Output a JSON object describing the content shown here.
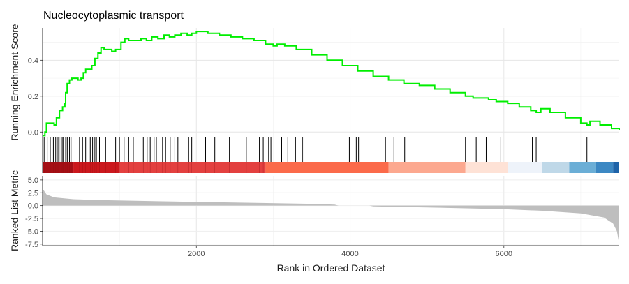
{
  "chart_data": {
    "type": "line",
    "title": "Nucleocytoplasmic transport",
    "xlabel": "Rank in Ordered Dataset",
    "xlim": [
      0,
      7500
    ],
    "x_ticks": [
      2000,
      4000,
      6000
    ],
    "es_panel": {
      "ylabel": "Running Enrichment Score",
      "ylim": [
        -0.03,
        0.58
      ],
      "y_ticks": [
        0.0,
        0.2,
        0.4
      ],
      "y_tick_labels": [
        "0.0",
        "0.2",
        "0.4"
      ],
      "series": [
        {
          "color": "#00EE00",
          "points": [
            [
              0,
              -0.02
            ],
            [
              30,
              0.0
            ],
            [
              50,
              0.05
            ],
            [
              100,
              0.05
            ],
            [
              150,
              0.04
            ],
            [
              180,
              0.08
            ],
            [
              220,
              0.12
            ],
            [
              260,
              0.14
            ],
            [
              290,
              0.16
            ],
            [
              300,
              0.22
            ],
            [
              320,
              0.27
            ],
            [
              350,
              0.29
            ],
            [
              380,
              0.3
            ],
            [
              420,
              0.3
            ],
            [
              460,
              0.29
            ],
            [
              500,
              0.3
            ],
            [
              530,
              0.33
            ],
            [
              560,
              0.35
            ],
            [
              600,
              0.35
            ],
            [
              640,
              0.37
            ],
            [
              680,
              0.41
            ],
            [
              720,
              0.44
            ],
            [
              760,
              0.47
            ],
            [
              800,
              0.46
            ],
            [
              850,
              0.46
            ],
            [
              900,
              0.45
            ],
            [
              950,
              0.46
            ],
            [
              990,
              0.46
            ],
            [
              1020,
              0.5
            ],
            [
              1070,
              0.52
            ],
            [
              1120,
              0.51
            ],
            [
              1200,
              0.51
            ],
            [
              1280,
              0.52
            ],
            [
              1350,
              0.51
            ],
            [
              1420,
              0.53
            ],
            [
              1500,
              0.52
            ],
            [
              1580,
              0.54
            ],
            [
              1650,
              0.53
            ],
            [
              1720,
              0.54
            ],
            [
              1800,
              0.55
            ],
            [
              1880,
              0.54
            ],
            [
              1940,
              0.55
            ],
            [
              2000,
              0.56
            ],
            [
              2050,
              0.56
            ],
            [
              2150,
              0.55
            ],
            [
              2300,
              0.54
            ],
            [
              2450,
              0.53
            ],
            [
              2600,
              0.52
            ],
            [
              2750,
              0.51
            ],
            [
              2900,
              0.49
            ],
            [
              3000,
              0.48
            ],
            [
              3050,
              0.49
            ],
            [
              3150,
              0.48
            ],
            [
              3300,
              0.46
            ],
            [
              3500,
              0.43
            ],
            [
              3700,
              0.4
            ],
            [
              3900,
              0.37
            ],
            [
              4100,
              0.34
            ],
            [
              4300,
              0.31
            ],
            [
              4500,
              0.29
            ],
            [
              4700,
              0.27
            ],
            [
              4900,
              0.26
            ],
            [
              5100,
              0.24
            ],
            [
              5300,
              0.22
            ],
            [
              5500,
              0.2
            ],
            [
              5600,
              0.19
            ],
            [
              5700,
              0.19
            ],
            [
              5800,
              0.18
            ],
            [
              5900,
              0.17
            ],
            [
              6050,
              0.16
            ],
            [
              6200,
              0.14
            ],
            [
              6350,
              0.12
            ],
            [
              6420,
              0.11
            ],
            [
              6480,
              0.13
            ],
            [
              6600,
              0.11
            ],
            [
              6800,
              0.08
            ],
            [
              7000,
              0.05
            ],
            [
              7080,
              0.04
            ],
            [
              7120,
              0.06
            ],
            [
              7250,
              0.04
            ],
            [
              7400,
              0.02
            ],
            [
              7500,
              0.01
            ]
          ]
        }
      ]
    },
    "hits": [
      20,
      60,
      100,
      140,
      170,
      200,
      215,
      240,
      255,
      270,
      300,
      320,
      330,
      350,
      370,
      480,
      520,
      560,
      620,
      650,
      680,
      700,
      740,
      820,
      950,
      1000,
      1060,
      1120,
      1180,
      1310,
      1360,
      1400,
      1450,
      1480,
      1560,
      1600,
      1660,
      1720,
      1760,
      1900,
      1940,
      2120,
      2240,
      2430,
      2650,
      2820,
      2870,
      2940,
      2970,
      3110,
      3190,
      3290,
      3380,
      3400,
      3990,
      4080,
      4110,
      4460,
      4570,
      4710,
      5500,
      5640,
      5770,
      5960,
      6370,
      6420,
      7080
    ],
    "color_bar": [
      {
        "from": 0,
        "to": 400,
        "color": "#A50F15"
      },
      {
        "from": 400,
        "to": 1000,
        "color": "#CB181D"
      },
      {
        "from": 1000,
        "to": 2900,
        "color": "#E3403F"
      },
      {
        "from": 2900,
        "to": 4500,
        "color": "#FB6A4A"
      },
      {
        "from": 4500,
        "to": 5500,
        "color": "#FCA88F"
      },
      {
        "from": 5500,
        "to": 6050,
        "color": "#FEE2D6"
      },
      {
        "from": 6050,
        "to": 6500,
        "color": "#EEF3FA"
      },
      {
        "from": 6500,
        "to": 6850,
        "color": "#BFD8E8"
      },
      {
        "from": 6850,
        "to": 7200,
        "color": "#6BAED6"
      },
      {
        "from": 7200,
        "to": 7420,
        "color": "#3C88C3"
      },
      {
        "from": 7420,
        "to": 7500,
        "color": "#1E63A8"
      }
    ],
    "metric_panel": {
      "ylabel": "Ranked List Metric",
      "ylim": [
        -7.8,
        5.8
      ],
      "y_ticks": [
        5.0,
        2.5,
        0.0,
        -2.5,
        -5.0,
        -7.5
      ],
      "y_tick_labels": [
        "5.0",
        "2.5",
        "0.0",
        "-2.5",
        "-5.0",
        "-7.5"
      ],
      "fill_color": "#BEBEBE",
      "profile": [
        [
          0,
          3.3
        ],
        [
          50,
          2.2
        ],
        [
          150,
          1.6
        ],
        [
          400,
          1.25
        ],
        [
          800,
          1.05
        ],
        [
          1500,
          0.85
        ],
        [
          2500,
          0.6
        ],
        [
          3500,
          0.35
        ],
        [
          3800,
          0.2
        ],
        [
          3850,
          0.0
        ],
        [
          4250,
          0.0
        ],
        [
          4300,
          -0.15
        ],
        [
          5000,
          -0.35
        ],
        [
          6000,
          -0.7
        ],
        [
          6500,
          -1.0
        ],
        [
          7000,
          -1.5
        ],
        [
          7300,
          -2.3
        ],
        [
          7420,
          -3.5
        ],
        [
          7470,
          -5.0
        ],
        [
          7500,
          -7.5
        ]
      ]
    }
  }
}
